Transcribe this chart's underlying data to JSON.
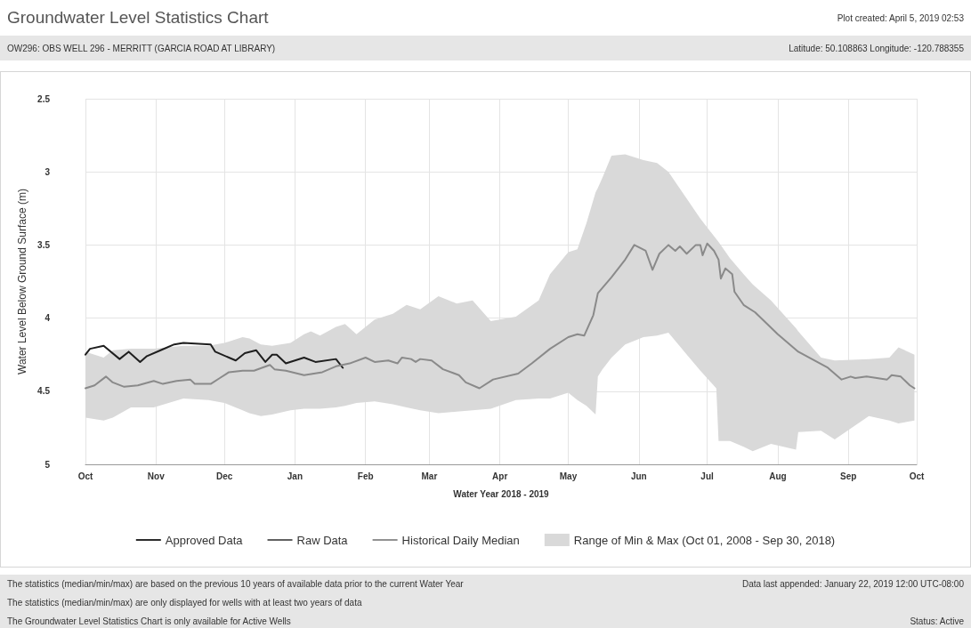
{
  "chart_data": {
    "type": "line",
    "title": "Groundwater Level Statistics Chart",
    "subtitle": "OW296: OBS WELL 296 - MERRITT (GARCIA ROAD AT LIBRARY)",
    "xlabel": "Water Year 2018 - 2019",
    "ylabel": "Water Level Below Ground Surface (m)",
    "annotations": [
      "Plot created: April 5, 2019 02:53",
      "Latitude: 50.108863 Longitude: -120.788355",
      "The statistics (median/min/max) are based on the previous 10 years of available data prior to the current Water Year",
      "The statistics (median/min/max) are only displayed for wells with at least two years of data",
      "The Groundwater Level Statistics Chart is only available for Active Wells",
      "Data last appended: January 22, 2019 12:00 UTC-08:00",
      "Status: Active"
    ],
    "xlim": [
      "2018-10-01",
      "2019-10-01"
    ],
    "xticks": [
      {
        "value": "2018-10-01",
        "label": "Oct"
      },
      {
        "value": "2018-11-01",
        "label": "Nov"
      },
      {
        "value": "2018-12-01",
        "label": "Dec"
      },
      {
        "value": "2019-01-01",
        "label": "Jan"
      },
      {
        "value": "2019-02-01",
        "label": "Feb"
      },
      {
        "value": "2019-03-01",
        "label": "Mar"
      },
      {
        "value": "2019-04-01",
        "label": "Apr"
      },
      {
        "value": "2019-05-01",
        "label": "May"
      },
      {
        "value": "2019-06-01",
        "label": "Jun"
      },
      {
        "value": "2019-07-01",
        "label": "Jul"
      },
      {
        "value": "2019-08-01",
        "label": "Aug"
      },
      {
        "value": "2019-09-01",
        "label": "Sep"
      },
      {
        "value": "2019-10-01",
        "label": "Oct"
      }
    ],
    "ylim": [
      5,
      2.5
    ],
    "yticks": [
      2.5,
      3,
      3.5,
      4,
      4.5,
      5
    ],
    "grid": true,
    "legend": "bottom",
    "marker": "none",
    "line_style": "solid",
    "series": [
      {
        "name": "Approved Data",
        "color": "#1e1e1e",
        "x": [
          "2018-10-01",
          "2018-10-03",
          "2018-10-09",
          "2018-10-16",
          "2018-10-20",
          "2018-10-25",
          "2018-10-28",
          "2018-11-03",
          "2018-11-09",
          "2018-11-13",
          "2018-11-25",
          "2018-11-27",
          "2018-12-06",
          "2018-12-10",
          "2018-12-15",
          "2018-12-19",
          "2018-12-22",
          "2018-12-24",
          "2018-12-28",
          "2019-01-05",
          "2019-01-10",
          "2019-01-19",
          "2019-01-22"
        ],
        "values": [
          4.25,
          4.21,
          4.19,
          4.28,
          4.23,
          4.3,
          4.26,
          4.22,
          4.18,
          4.17,
          4.18,
          4.23,
          4.29,
          4.24,
          4.22,
          4.3,
          4.25,
          4.25,
          4.31,
          4.27,
          4.3,
          4.28,
          4.34
        ]
      },
      {
        "name": "Raw Data",
        "color": "#555555"
      },
      {
        "name": "Historical Daily Median",
        "color": "#8a8a8a",
        "x": [
          "2018-10-01",
          "2018-10-05",
          "2018-10-10",
          "2018-10-13",
          "2018-10-18",
          "2018-10-24",
          "2018-10-31",
          "2018-11-04",
          "2018-11-10",
          "2018-11-16",
          "2018-11-18",
          "2018-11-25",
          "2018-11-29",
          "2018-12-03",
          "2018-12-09",
          "2018-12-14",
          "2018-12-21",
          "2018-12-23",
          "2018-12-28",
          "2019-01-05",
          "2019-01-13",
          "2019-01-19",
          "2019-01-25",
          "2019-02-01",
          "2019-02-05",
          "2019-02-11",
          "2019-02-15",
          "2019-02-17",
          "2019-02-21",
          "2019-02-23",
          "2019-02-25",
          "2019-03-02",
          "2019-03-07",
          "2019-03-14",
          "2019-03-17",
          "2019-03-23",
          "2019-03-29",
          "2019-04-09",
          "2019-04-15",
          "2019-04-23",
          "2019-05-01",
          "2019-05-05",
          "2019-05-08",
          "2019-05-12",
          "2019-05-14",
          "2019-05-20",
          "2019-05-26",
          "2019-05-30",
          "2019-06-04",
          "2019-06-07",
          "2019-06-10",
          "2019-06-14",
          "2019-06-17",
          "2019-06-19",
          "2019-06-22",
          "2019-06-26",
          "2019-06-28",
          "2019-06-29",
          "2019-07-01",
          "2019-07-04",
          "2019-07-06",
          "2019-07-07",
          "2019-07-09",
          "2019-07-12",
          "2019-07-13",
          "2019-07-17",
          "2019-07-22",
          "2019-08-01",
          "2019-08-10",
          "2019-08-23",
          "2019-08-29",
          "2019-09-02",
          "2019-09-04",
          "2019-09-09",
          "2019-09-18",
          "2019-09-20",
          "2019-09-24",
          "2019-09-28",
          "2019-09-30"
        ],
        "values": [
          4.48,
          4.46,
          4.4,
          4.44,
          4.47,
          4.46,
          4.43,
          4.45,
          4.43,
          4.42,
          4.45,
          4.45,
          4.41,
          4.37,
          4.36,
          4.36,
          4.32,
          4.35,
          4.36,
          4.39,
          4.37,
          4.33,
          4.31,
          4.27,
          4.3,
          4.29,
          4.31,
          4.27,
          4.28,
          4.3,
          4.28,
          4.29,
          4.35,
          4.39,
          4.44,
          4.48,
          4.42,
          4.38,
          4.31,
          4.21,
          4.13,
          4.11,
          4.12,
          3.98,
          3.83,
          3.72,
          3.6,
          3.5,
          3.54,
          3.67,
          3.56,
          3.5,
          3.54,
          3.51,
          3.56,
          3.5,
          3.5,
          3.57,
          3.49,
          3.54,
          3.6,
          3.73,
          3.66,
          3.7,
          3.82,
          3.91,
          3.96,
          4.11,
          4.23,
          4.34,
          4.42,
          4.4,
          4.41,
          4.4,
          4.42,
          4.39,
          4.4,
          4.46,
          4.48
        ]
      },
      {
        "name": "Range of Min & Max (Oct 01, 2008 - Sep 30, 2018)",
        "type": "area",
        "color": "#d9d9d9",
        "x": [
          "2018-10-01",
          "2018-10-09",
          "2018-10-13",
          "2018-10-21",
          "2018-10-31",
          "2018-11-13",
          "2018-11-24",
          "2018-12-01",
          "2018-12-09",
          "2018-12-12",
          "2018-12-17",
          "2018-12-22",
          "2018-12-30",
          "2019-01-05",
          "2019-01-08",
          "2019-01-12",
          "2019-01-19",
          "2019-01-23",
          "2019-01-28",
          "2019-02-05",
          "2019-02-13",
          "2019-02-19",
          "2019-02-25",
          "2019-03-05",
          "2019-03-13",
          "2019-03-20",
          "2019-03-28",
          "2019-04-08",
          "2019-04-18",
          "2019-04-23",
          "2019-05-01",
          "2019-05-05",
          "2019-05-09",
          "2019-05-13",
          "2019-05-14",
          "2019-05-16",
          "2019-05-20",
          "2019-05-26",
          "2019-06-03",
          "2019-06-09",
          "2019-06-14",
          "2019-06-21",
          "2019-06-28",
          "2019-07-05",
          "2019-07-06",
          "2019-07-11",
          "2019-07-17",
          "2019-07-21",
          "2019-07-29",
          "2019-08-09",
          "2019-08-10",
          "2019-08-20",
          "2019-08-26",
          "2019-09-10",
          "2019-09-19",
          "2019-09-23",
          "2019-09-30"
        ],
        "values": [
          null,
          null,
          null,
          null,
          null,
          null,
          null,
          null,
          null,
          null,
          null,
          null,
          null,
          null,
          null,
          null,
          null,
          null,
          null,
          null,
          null,
          null,
          null,
          null,
          null,
          null,
          null,
          null,
          null,
          null,
          null,
          null,
          null,
          null,
          null,
          null,
          null,
          null,
          null,
          null,
          null,
          null,
          null,
          null,
          null,
          null,
          null,
          null,
          null,
          null,
          null,
          null,
          null,
          null,
          null,
          null,
          null
        ],
        "lower": [
          4.23,
          4.27,
          4.22,
          4.21,
          4.21,
          4.19,
          4.19,
          4.17,
          4.13,
          4.14,
          4.18,
          4.19,
          4.17,
          4.11,
          4.09,
          4.12,
          4.06,
          4.04,
          4.11,
          4.01,
          3.97,
          3.91,
          3.94,
          3.85,
          3.9,
          3.88,
          4.02,
          3.99,
          3.88,
          3.7,
          3.55,
          3.53,
          3.35,
          3.14,
          3.11,
          3.04,
          2.89,
          2.88,
          2.92,
          2.94,
          3,
          3.16,
          3.32,
          3.46,
          3.48,
          3.59,
          3.7,
          3.77,
          3.88,
          4.07,
          4.09,
          4.27,
          4.29,
          4.28,
          4.27,
          4.2,
          4.25
        ],
        "upper": [
          4.68,
          4.7,
          4.68,
          4.61,
          4.61,
          4.55,
          4.56,
          4.58,
          4.63,
          4.65,
          4.67,
          4.66,
          4.63,
          4.62,
          4.62,
          4.62,
          4.61,
          4.6,
          4.58,
          4.57,
          4.59,
          4.61,
          4.63,
          4.65,
          4.64,
          4.63,
          4.62,
          4.56,
          4.55,
          4.55,
          4.51,
          4.56,
          4.6,
          4.66,
          4.4,
          4.35,
          4.27,
          4.18,
          4.13,
          4.12,
          4.1,
          4.23,
          4.36,
          4.48,
          4.84,
          4.84,
          4.88,
          4.91,
          4.86,
          4.9,
          4.78,
          4.77,
          4.83,
          4.67,
          4.7,
          4.72,
          4.7
        ]
      }
    ]
  }
}
